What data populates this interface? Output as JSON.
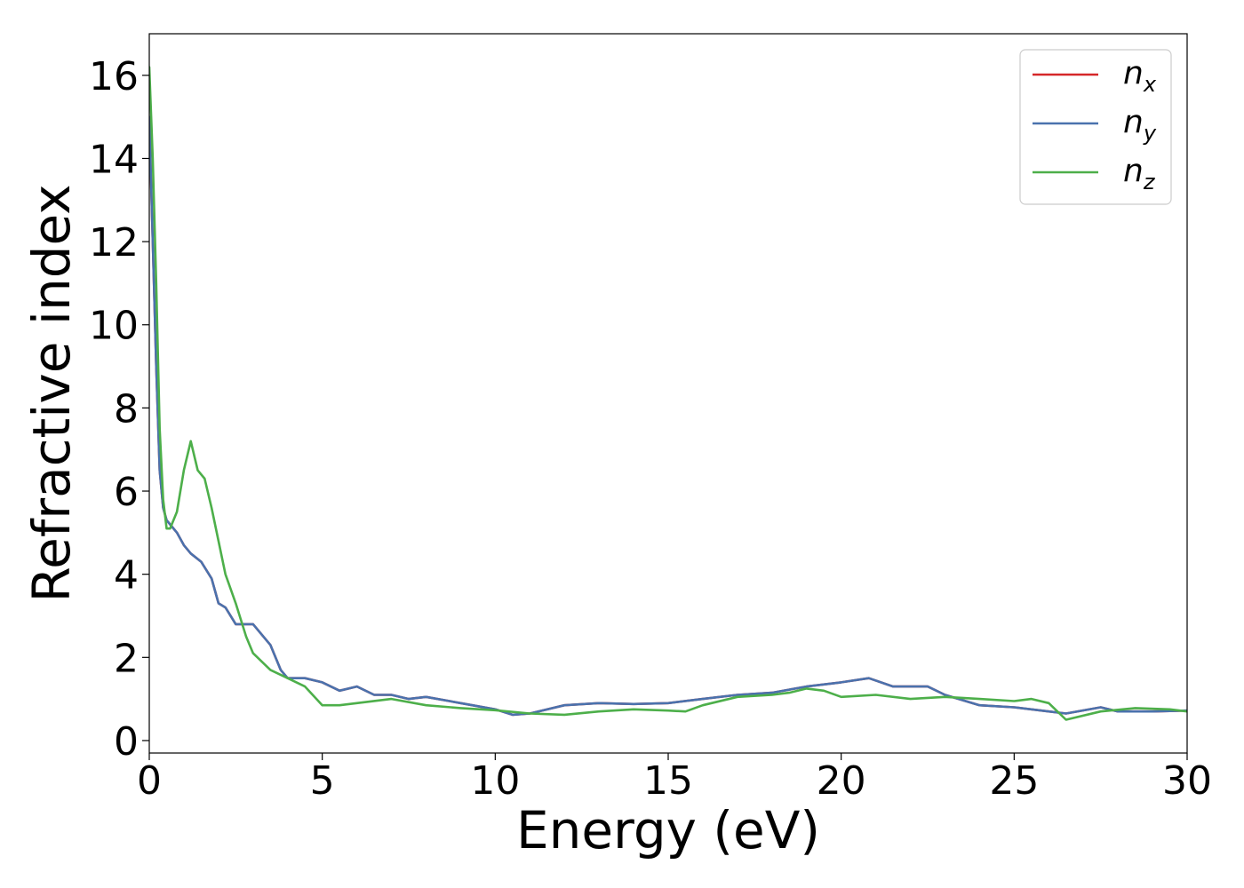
{
  "chart_data": {
    "type": "line",
    "title": "",
    "xlabel": "Energy (eV)",
    "ylabel": "Refractive index",
    "xlim": [
      0,
      30
    ],
    "ylim": [
      -0.3,
      17
    ],
    "xticks": [
      0,
      5,
      10,
      15,
      20,
      25,
      30
    ],
    "yticks": [
      0,
      2,
      4,
      6,
      8,
      10,
      12,
      14,
      16
    ],
    "grid": false,
    "legend_position": "top-right",
    "series": [
      {
        "name": "n",
        "subscript": "x",
        "color": "#d62728",
        "x": [
          0,
          0.1,
          0.2,
          0.3,
          0.4,
          0.5,
          0.6,
          0.8,
          1.0,
          1.2,
          1.5,
          1.8,
          2.0,
          2.2,
          2.5,
          3.0,
          3.5,
          3.8,
          4.0,
          4.5,
          5.0,
          5.5,
          6.0,
          6.5,
          7.0,
          7.5,
          8.0,
          9.0,
          10.0,
          10.5,
          11.0,
          12.0,
          13.0,
          14.0,
          15.0,
          16.0,
          17.0,
          18.0,
          19.0,
          20.0,
          20.8,
          21.5,
          22.5,
          23.0,
          24.0,
          25.0,
          26.0,
          26.5,
          27.5,
          28.0,
          29.0,
          30.0
        ],
        "values": [
          15.0,
          12.0,
          9.0,
          6.5,
          5.6,
          5.3,
          5.2,
          5.0,
          4.7,
          4.5,
          4.3,
          3.9,
          3.3,
          3.2,
          2.8,
          2.8,
          2.3,
          1.7,
          1.5,
          1.5,
          1.4,
          1.2,
          1.3,
          1.1,
          1.1,
          1.0,
          1.05,
          0.9,
          0.75,
          0.62,
          0.65,
          0.85,
          0.9,
          0.88,
          0.9,
          1.0,
          1.1,
          1.15,
          1.3,
          1.4,
          1.5,
          1.3,
          1.3,
          1.1,
          0.85,
          0.8,
          0.7,
          0.65,
          0.8,
          0.7,
          0.7,
          0.72
        ]
      },
      {
        "name": "n",
        "subscript": "y",
        "color": "#4a72ad",
        "x": [
          0,
          0.1,
          0.2,
          0.3,
          0.4,
          0.5,
          0.6,
          0.8,
          1.0,
          1.2,
          1.5,
          1.8,
          2.0,
          2.2,
          2.5,
          3.0,
          3.5,
          3.8,
          4.0,
          4.5,
          5.0,
          5.5,
          6.0,
          6.5,
          7.0,
          7.5,
          8.0,
          9.0,
          10.0,
          10.5,
          11.0,
          12.0,
          13.0,
          14.0,
          15.0,
          16.0,
          17.0,
          18.0,
          19.0,
          20.0,
          20.8,
          21.5,
          22.5,
          23.0,
          24.0,
          25.0,
          26.0,
          26.5,
          27.5,
          28.0,
          29.0,
          30.0
        ],
        "values": [
          15.0,
          12.0,
          9.0,
          6.5,
          5.6,
          5.3,
          5.2,
          5.0,
          4.7,
          4.5,
          4.3,
          3.9,
          3.3,
          3.2,
          2.8,
          2.8,
          2.3,
          1.7,
          1.5,
          1.5,
          1.4,
          1.2,
          1.3,
          1.1,
          1.1,
          1.0,
          1.05,
          0.9,
          0.75,
          0.62,
          0.65,
          0.85,
          0.9,
          0.88,
          0.9,
          1.0,
          1.1,
          1.15,
          1.3,
          1.4,
          1.5,
          1.3,
          1.3,
          1.1,
          0.85,
          0.8,
          0.7,
          0.65,
          0.8,
          0.7,
          0.7,
          0.72
        ]
      },
      {
        "name": "n",
        "subscript": "z",
        "color": "#4daf4a",
        "x": [
          0,
          0.1,
          0.2,
          0.3,
          0.4,
          0.5,
          0.6,
          0.8,
          1.0,
          1.2,
          1.4,
          1.6,
          1.8,
          2.0,
          2.2,
          2.5,
          2.8,
          3.0,
          3.5,
          4.0,
          4.5,
          5.0,
          5.5,
          6.0,
          7.0,
          8.0,
          9.0,
          10.0,
          11.0,
          12.0,
          13.0,
          14.0,
          15.0,
          15.5,
          16.0,
          17.0,
          18.0,
          18.5,
          19.0,
          19.5,
          20.0,
          21.0,
          22.0,
          23.0,
          24.0,
          25.0,
          25.5,
          26.0,
          26.5,
          27.5,
          28.5,
          29.5,
          30.0
        ],
        "values": [
          16.2,
          14.0,
          11.0,
          7.5,
          5.8,
          5.1,
          5.1,
          5.5,
          6.5,
          7.2,
          6.5,
          6.3,
          5.6,
          4.8,
          4.0,
          3.3,
          2.5,
          2.1,
          1.7,
          1.5,
          1.3,
          0.85,
          0.85,
          0.9,
          1.0,
          0.85,
          0.78,
          0.73,
          0.65,
          0.62,
          0.7,
          0.75,
          0.72,
          0.7,
          0.85,
          1.05,
          1.1,
          1.15,
          1.25,
          1.2,
          1.05,
          1.1,
          1.0,
          1.05,
          1.0,
          0.95,
          1.0,
          0.9,
          0.5,
          0.7,
          0.78,
          0.75,
          0.7
        ]
      }
    ]
  }
}
